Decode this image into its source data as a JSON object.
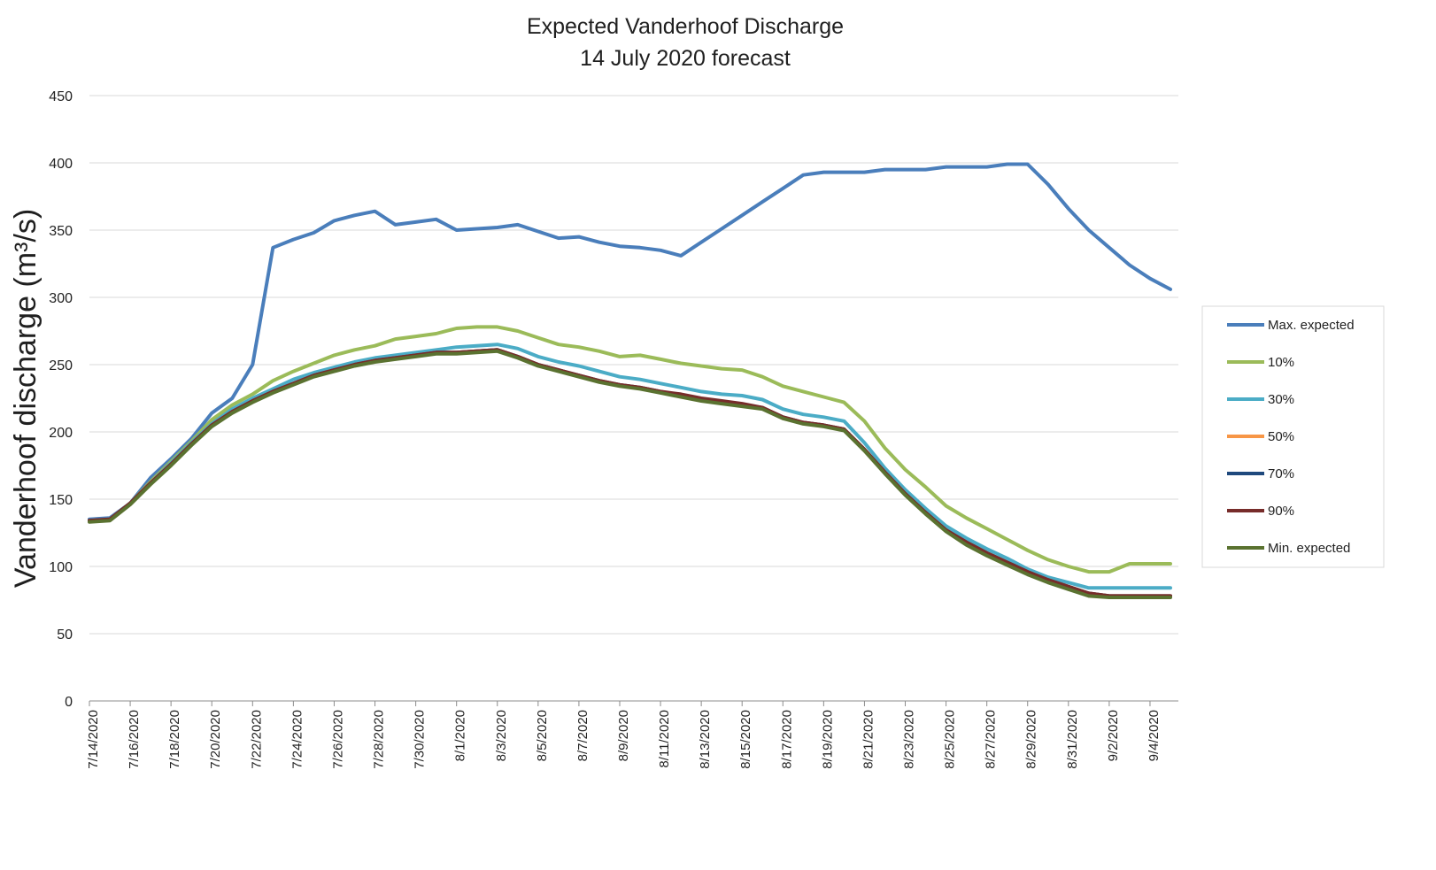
{
  "chart_data": {
    "type": "line",
    "title": "Expected Vanderhoof Discharge",
    "subtitle": "14 July 2020 forecast",
    "ylabel": "Vanderhoof discharge (m³/s)",
    "xlabel": "",
    "ylim": [
      0,
      450
    ],
    "yticks": [
      0,
      50,
      100,
      150,
      200,
      250,
      300,
      350,
      400,
      450
    ],
    "grid": "horizontal",
    "legend_position": "right",
    "x_start": "7/14/2020",
    "x_end": "9/4/2020",
    "xtick_labels": [
      "7/14/2020",
      "7/16/2020",
      "7/18/2020",
      "7/20/2020",
      "7/22/2020",
      "7/24/2020",
      "7/26/2020",
      "7/28/2020",
      "7/30/2020",
      "8/1/2020",
      "8/3/2020",
      "8/5/2020",
      "8/7/2020",
      "8/9/2020",
      "8/11/2020",
      "8/13/2020",
      "8/15/2020",
      "8/17/2020",
      "8/19/2020",
      "8/21/2020",
      "8/23/2020",
      "8/25/2020",
      "8/27/2020",
      "8/29/2020",
      "8/31/2020",
      "9/2/2020",
      "9/4/2020"
    ],
    "series": [
      {
        "name": "Max. expected",
        "color": "#4a7ebb",
        "values": [
          135,
          136,
          147,
          166,
          180,
          195,
          214,
          225,
          250,
          337,
          343,
          348,
          357,
          361,
          364,
          354,
          356,
          358,
          350,
          351,
          352,
          354,
          349,
          344,
          345,
          341,
          338,
          337,
          335,
          331,
          341,
          351,
          361,
          371,
          381,
          391,
          393,
          393,
          393,
          395,
          395,
          395,
          397,
          397,
          397,
          399,
          399,
          384,
          366,
          350,
          337,
          324,
          314,
          306
        ]
      },
      {
        "name": "10%",
        "color": "#9bbb59",
        "values": [
          134,
          135,
          147,
          163,
          178,
          193,
          209,
          220,
          228,
          238,
          245,
          251,
          257,
          261,
          264,
          269,
          271,
          273,
          277,
          278,
          278,
          275,
          270,
          265,
          263,
          260,
          256,
          257,
          254,
          251,
          249,
          247,
          246,
          241,
          234,
          230,
          226,
          222,
          208,
          188,
          172,
          159,
          145,
          136,
          128,
          120,
          112,
          105,
          100,
          96,
          96,
          102,
          102,
          102
        ]
      },
      {
        "name": "30%",
        "color": "#4bacc6",
        "values": [
          134,
          135,
          147,
          162,
          177,
          192,
          206,
          217,
          225,
          232,
          239,
          244,
          248,
          252,
          255,
          257,
          259,
          261,
          263,
          264,
          265,
          262,
          256,
          252,
          249,
          245,
          241,
          239,
          236,
          233,
          230,
          228,
          227,
          224,
          217,
          213,
          211,
          208,
          192,
          173,
          157,
          143,
          130,
          121,
          113,
          106,
          98,
          92,
          88,
          84,
          84,
          84,
          84,
          84
        ]
      },
      {
        "name": "50%",
        "color": "#f79646",
        "values": [
          134,
          135,
          147,
          162,
          176,
          191,
          205,
          215,
          223,
          230,
          236,
          242,
          246,
          250,
          253,
          255,
          257,
          259,
          259,
          260,
          261,
          256,
          250,
          246,
          242,
          238,
          235,
          233,
          230,
          227,
          224,
          222,
          220,
          218,
          211,
          207,
          205,
          202,
          187,
          170,
          154,
          140,
          127,
          118,
          110,
          103,
          96,
          90,
          85,
          80,
          78,
          78,
          78,
          78
        ]
      },
      {
        "name": "70%",
        "color": "#1f497d",
        "values": [
          134,
          135,
          147,
          162,
          176,
          191,
          205,
          215,
          223,
          230,
          236,
          242,
          246,
          250,
          253,
          255,
          257,
          259,
          259,
          260,
          261,
          256,
          250,
          246,
          242,
          238,
          235,
          233,
          230,
          227,
          224,
          222,
          220,
          218,
          211,
          207,
          205,
          202,
          187,
          170,
          154,
          140,
          127,
          118,
          110,
          103,
          96,
          90,
          85,
          80,
          78,
          78,
          78,
          78
        ]
      },
      {
        "name": "90%",
        "color": "#772c2a",
        "values": [
          134,
          135,
          147,
          162,
          176,
          191,
          205,
          215,
          223,
          230,
          236,
          242,
          246,
          250,
          253,
          255,
          257,
          259,
          259,
          260,
          261,
          256,
          250,
          246,
          242,
          238,
          235,
          233,
          230,
          228,
          225,
          223,
          221,
          218,
          211,
          207,
          205,
          202,
          187,
          170,
          154,
          140,
          127,
          118,
          110,
          103,
          96,
          90,
          85,
          80,
          78,
          78,
          78,
          78
        ]
      },
      {
        "name": "Min. expected",
        "color": "#5a7230",
        "values": [
          133,
          134,
          146,
          161,
          175,
          190,
          204,
          214,
          222,
          229,
          235,
          241,
          245,
          249,
          252,
          254,
          256,
          258,
          258,
          259,
          260,
          255,
          249,
          245,
          241,
          237,
          234,
          232,
          229,
          226,
          223,
          221,
          219,
          217,
          210,
          206,
          204,
          201,
          186,
          169,
          153,
          139,
          126,
          116,
          108,
          101,
          94,
          88,
          83,
          78,
          77,
          77,
          77,
          77
        ]
      }
    ]
  }
}
